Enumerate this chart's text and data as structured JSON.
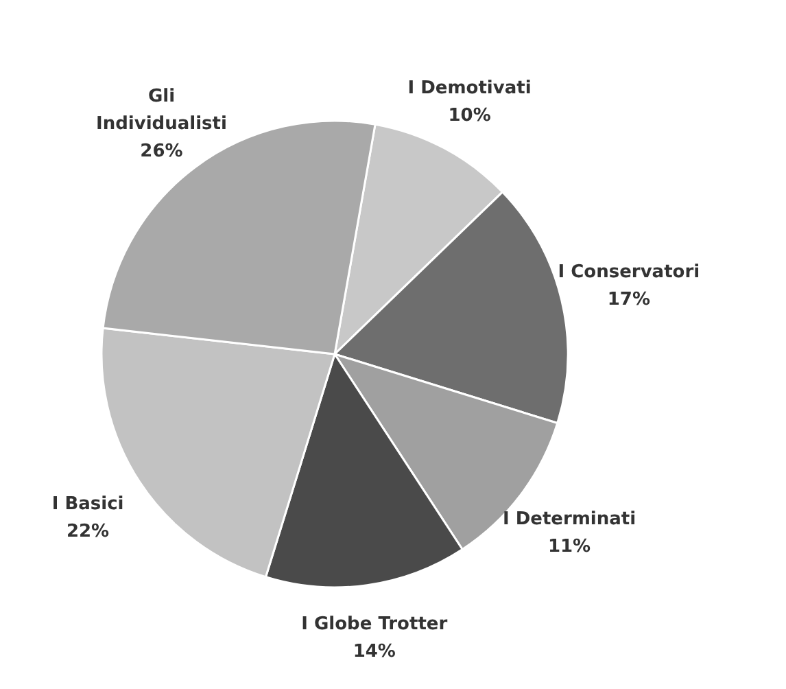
{
  "chart_data": {
    "type": "pie",
    "categories": [
      "I Demotivati",
      "I Conservatori",
      "I Determinati",
      "I Globe Trotter",
      "I Basici",
      "Gli Individualisti"
    ],
    "values": [
      10,
      17,
      11,
      14,
      22,
      26
    ],
    "colors": [
      "#c8c8c8",
      "#6e6e6e",
      "#a0a0a0",
      "#4a4a4a",
      "#c2c2c2",
      "#a9a9a9"
    ],
    "value_labels": [
      "10%",
      "17%",
      "11%",
      "14%",
      "22%",
      "26%"
    ]
  }
}
